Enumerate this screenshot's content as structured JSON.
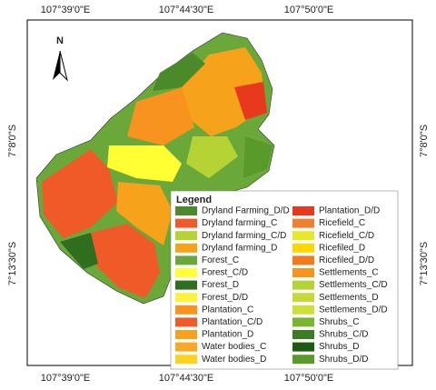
{
  "north_arrow": "N",
  "top_labels": [
    "107°39'0\"E",
    "107°44'30\"E",
    "107°50'0\"E"
  ],
  "bottom_labels": [
    "107°39'0\"E",
    "107°44'30\"E",
    "107°50'0\"E"
  ],
  "left_labels": [
    "7°8'0\"S",
    "7°13'30\"S"
  ],
  "right_labels": [
    "7°8'0\"S",
    "7°13'30\"S"
  ],
  "legend": {
    "title": "Legend",
    "items": [
      {
        "label": "Dryland Farming_D/D",
        "color": "#4a8a2a"
      },
      {
        "label": "Dryland farming_C",
        "color": "#f05a28"
      },
      {
        "label": "Dryland farming_C/D",
        "color": "#b5d334"
      },
      {
        "label": "Dryland farming_D",
        "color": "#f7a21b"
      },
      {
        "label": "Forest_C",
        "color": "#6aa83a"
      },
      {
        "label": "Forest_C/D",
        "color": "#ffff33"
      },
      {
        "label": "Forest_D",
        "color": "#2f6e1e"
      },
      {
        "label": "Forest_D/D",
        "color": "#fff23a"
      },
      {
        "label": "Plantation_C",
        "color": "#f7931e"
      },
      {
        "label": "Plantation_C/D",
        "color": "#f05a28"
      },
      {
        "label": "Plantation_D",
        "color": "#f7a21b"
      },
      {
        "label": "Water bodies_C",
        "color": "#f9a825"
      },
      {
        "label": "Water bodies_D",
        "color": "#ffd21f"
      },
      {
        "label": "Plantation_D/D",
        "color": "#e8381d"
      },
      {
        "label": "Ricefield_C",
        "color": "#f08030"
      },
      {
        "label": "Ricefield_C/D",
        "color": "#e8e82a"
      },
      {
        "label": "Ricefiled_D",
        "color": "#ffd700"
      },
      {
        "label": "Ricefiled_D/D",
        "color": "#f47a20"
      },
      {
        "label": "Settlements_C",
        "color": "#f7941d"
      },
      {
        "label": "Settlements_C/D",
        "color": "#b5d334"
      },
      {
        "label": "Settlements_D",
        "color": "#c6d93a"
      },
      {
        "label": "Settlements_D/D",
        "color": "#cde039"
      },
      {
        "label": "Shrubs_C",
        "color": "#7ab52f"
      },
      {
        "label": "Shrubs_C/D",
        "color": "#3a7d23"
      },
      {
        "label": "Shrubs_D",
        "color": "#1e5a12"
      },
      {
        "label": "Shrubs_D/D",
        "color": "#5a9a2a"
      }
    ]
  }
}
